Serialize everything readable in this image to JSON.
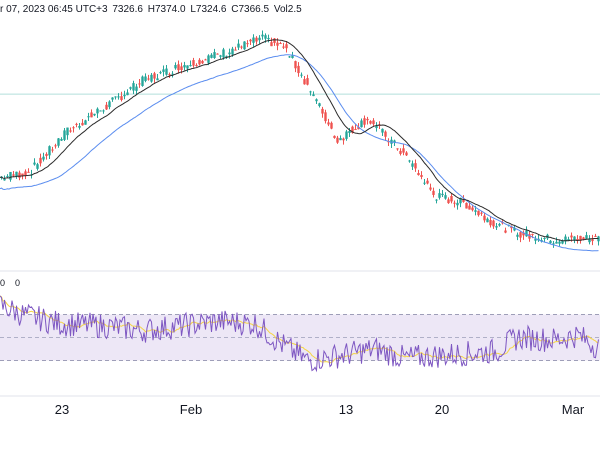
{
  "header": {
    "date_fragment": "r 07, 2023 06:45 UTC+3",
    "open": "7326.6",
    "high": "H7374.0",
    "low": "L7324.6",
    "close": "C7366.5",
    "volume": "Vol2.5"
  },
  "rsi_header": {
    "fragment_a": "0",
    "fragment_b": "0"
  },
  "colors": {
    "up": "#26a69a",
    "down": "#ef5350",
    "ma_fast": "#2a2a2a",
    "ma_slow": "#5b8def",
    "rsi_line": "#7e57c2",
    "rsi_ma": "#f5d547",
    "rsi_band": "#ede7f6",
    "hline": "#b2dfdb"
  },
  "chart_data": [
    {
      "type": "candlestick",
      "title": "",
      "x_ticks": [
        "23",
        "Feb",
        "13",
        "20",
        "Mar"
      ],
      "candles_per_day": 6,
      "key_closes": [
        [
          0,
          80
        ],
        [
          20,
          83
        ],
        [
          45,
          105
        ],
        [
          70,
          118
        ],
        [
          95,
          132
        ],
        [
          120,
          140
        ],
        [
          145,
          146
        ],
        [
          175,
          155
        ],
        [
          190,
          150
        ],
        [
          205,
          130
        ],
        [
          225,
          100
        ],
        [
          245,
          112
        ],
        [
          270,
          92
        ],
        [
          290,
          70
        ],
        [
          310,
          66
        ],
        [
          330,
          55
        ],
        [
          345,
          50
        ],
        [
          370,
          46
        ],
        [
          385,
          47
        ],
        [
          398,
          47
        ]
      ],
      "series": [
        {
          "name": "",
          "kind": "ma_fast",
          "period": 20
        },
        {
          "name": "",
          "kind": "ma_slow",
          "period": 40
        }
      ]
    },
    {
      "type": "line",
      "title": "",
      "ylim": [
        0,
        100
      ],
      "band": [
        30,
        70
      ],
      "midline": 50,
      "key_values": [
        [
          0,
          78
        ],
        [
          15,
          70
        ],
        [
          40,
          62
        ],
        [
          70,
          60
        ],
        [
          95,
          56
        ],
        [
          120,
          60
        ],
        [
          145,
          64
        ],
        [
          170,
          62
        ],
        [
          190,
          42
        ],
        [
          205,
          30
        ],
        [
          225,
          34
        ],
        [
          250,
          40
        ],
        [
          270,
          32
        ],
        [
          290,
          34
        ],
        [
          310,
          36
        ],
        [
          330,
          38
        ],
        [
          345,
          50
        ],
        [
          370,
          48
        ],
        [
          385,
          52
        ],
        [
          398,
          42
        ]
      ]
    }
  ]
}
